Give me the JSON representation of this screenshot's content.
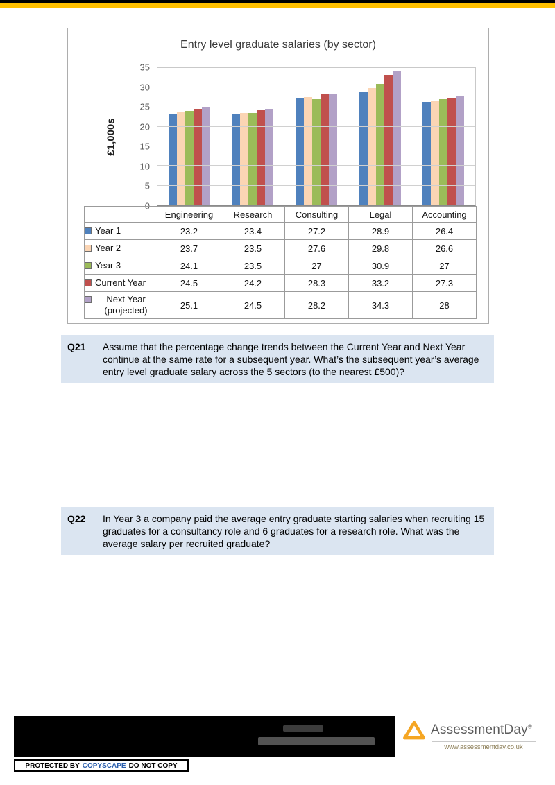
{
  "header": {
    "top_stripe_color": "#000000",
    "accent_bar_color": "#FFC000"
  },
  "chart_data": {
    "type": "bar",
    "title": "Entry level graduate salaries (by sector)",
    "ylabel": "£1,000s",
    "ylim": [
      0,
      35
    ],
    "ytick_step": 5,
    "grid": true,
    "legend_position": "left-of-data-table",
    "categories": [
      "Engineering",
      "Research",
      "Consulting",
      "Legal",
      "Accounting"
    ],
    "series": [
      {
        "name": "Year 1",
        "color": "#4F81BD",
        "values": [
          23.2,
          23.4,
          27.2,
          28.9,
          26.4
        ]
      },
      {
        "name": "Year 2",
        "color": "#FBD5B4",
        "values": [
          23.7,
          23.5,
          27.6,
          29.8,
          26.6
        ]
      },
      {
        "name": "Year 3",
        "color": "#9BBB59",
        "values": [
          24.1,
          23.5,
          27,
          30.9,
          27
        ]
      },
      {
        "name": "Current Year",
        "color": "#C0504D",
        "values": [
          24.5,
          24.2,
          28.3,
          33.2,
          27.3
        ]
      },
      {
        "name": "Next Year (projected)",
        "color": "#B2A1C7",
        "values": [
          25.1,
          24.5,
          28.2,
          34.3,
          28
        ]
      }
    ]
  },
  "questions": [
    {
      "id": "Q21",
      "text": "Assume that the percentage change trends between the Current Year and Next Year continue at the same rate for a subsequent year. What’s the subsequent year’s average entry level graduate salary across the 5 sectors (to the nearest £500)?"
    },
    {
      "id": "Q22",
      "text": "In Year 3 a company paid the average entry graduate starting salaries when recruiting 15 graduates for a consultancy role and 6 graduates for a research role. What was the average salary per recruited graduate?"
    }
  ],
  "footer": {
    "brand_name": "AssessmentDay",
    "registered_mark": "®",
    "website_url": "www.assessmentday.co.uk",
    "copyscape_badge": {
      "prefix": "PROTECTED BY",
      "brand": "COPYSCAPE",
      "suffix": "DO NOT COPY"
    }
  }
}
